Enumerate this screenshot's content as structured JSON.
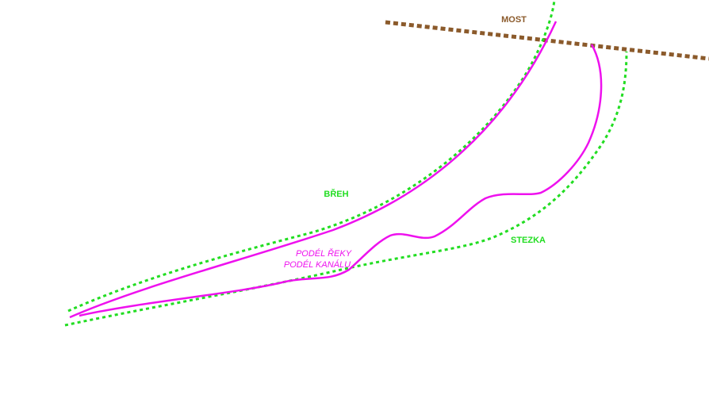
{
  "map": {
    "labels": {
      "bridge": "MOST",
      "bank": "BŘEH",
      "path": "STEZKA",
      "route_line1": "PODÉL ŘEKY",
      "route_line2": "PODÉL KANÁLU"
    },
    "colors": {
      "bridge": "#8b5a2b",
      "bank": "#22dd22",
      "route": "#ee11ee",
      "background": "#ffffff"
    }
  }
}
